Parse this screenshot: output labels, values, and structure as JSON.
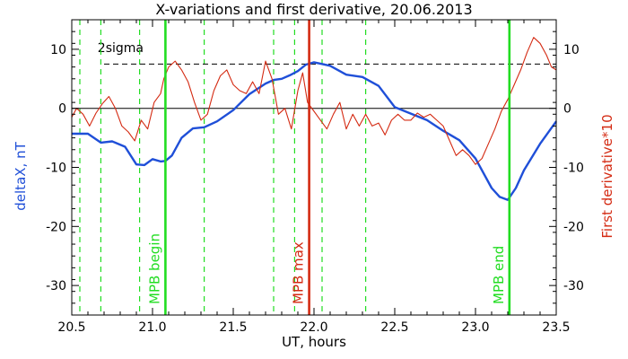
{
  "chart_data": {
    "type": "line",
    "title": "X-variations and first derivative, 20.06.2013",
    "xlabel": "UT, hours",
    "ylabel_left": "deltaX, nT",
    "ylabel_right": "First derivative*10",
    "xlim": [
      20.5,
      23.5
    ],
    "ylim": [
      -35,
      15
    ],
    "x_ticks": [
      20.5,
      21.0,
      21.5,
      22.0,
      22.5,
      23.0,
      23.5
    ],
    "x_tick_labels": [
      "20.5",
      "21.0",
      "21.5",
      "22.0",
      "22.5",
      "23.0",
      "23.5"
    ],
    "y_ticks": [
      10,
      0,
      -10,
      -20,
      -30
    ],
    "y_tick_labels": [
      "10",
      "0",
      "-10",
      "-20",
      "-30"
    ],
    "grid": false,
    "threshold_label": "2sigma",
    "threshold_value": 7.5,
    "zero_line": 0,
    "colors": {
      "deltaX": "#1f4fd8",
      "derivative": "#d42a12",
      "markers": "#22dd22",
      "mpb_max": "#d42a12",
      "text_left": "#1f4fd8",
      "text_right": "#d42a12"
    },
    "series": [
      {
        "name": "deltaX, nT",
        "color": "#1f4fd8",
        "x": [
          20.5,
          20.6,
          20.68,
          20.75,
          20.83,
          20.9,
          20.95,
          21.0,
          21.05,
          21.08,
          21.12,
          21.18,
          21.25,
          21.32,
          21.4,
          21.5,
          21.6,
          21.7,
          21.75,
          21.8,
          21.85,
          21.9,
          21.95,
          22.0,
          22.05,
          22.1,
          22.2,
          22.3,
          22.4,
          22.5,
          22.6,
          22.7,
          22.8,
          22.9,
          23.0,
          23.1,
          23.15,
          23.2,
          23.25,
          23.3,
          23.4,
          23.5
        ],
        "values": [
          -4.3,
          -4.3,
          -5.8,
          -5.6,
          -6.5,
          -9.5,
          -9.6,
          -8.6,
          -9.0,
          -8.9,
          -8.0,
          -5.0,
          -3.4,
          -3.2,
          -2.2,
          -0.3,
          2.4,
          4.2,
          4.8,
          5.0,
          5.6,
          6.3,
          7.4,
          7.8,
          7.5,
          7.2,
          5.7,
          5.3,
          3.8,
          0.2,
          -0.9,
          -2.0,
          -3.8,
          -5.4,
          -8.5,
          -13.5,
          -15.0,
          -15.5,
          -13.5,
          -10.5,
          -6.0,
          -2.2
        ]
      },
      {
        "name": "First derivative*10",
        "color": "#d42a12",
        "x": [
          20.5,
          20.53,
          20.57,
          20.61,
          20.65,
          20.69,
          20.73,
          20.77,
          20.81,
          20.85,
          20.89,
          20.93,
          20.97,
          21.01,
          21.05,
          21.07,
          21.1,
          21.14,
          21.18,
          21.22,
          21.26,
          21.3,
          21.34,
          21.38,
          21.42,
          21.46,
          21.5,
          21.54,
          21.58,
          21.62,
          21.66,
          21.7,
          21.74,
          21.78,
          21.82,
          21.86,
          21.9,
          21.93,
          21.96,
          22.0,
          22.04,
          22.08,
          22.12,
          22.16,
          22.2,
          22.24,
          22.28,
          22.32,
          22.36,
          22.4,
          22.44,
          22.48,
          22.52,
          22.56,
          22.6,
          22.64,
          22.68,
          22.72,
          22.76,
          22.8,
          22.84,
          22.88,
          22.92,
          22.96,
          23.0,
          23.04,
          23.08,
          23.12,
          23.16,
          23.2,
          23.24,
          23.28,
          23.32,
          23.36,
          23.4,
          23.44,
          23.47,
          23.5
        ],
        "values": [
          -1.5,
          0.0,
          -1.0,
          -3.0,
          -0.8,
          0.8,
          2.0,
          0.0,
          -3.0,
          -4.0,
          -5.5,
          -2.0,
          -3.5,
          1.0,
          2.5,
          5.0,
          7.0,
          8.0,
          6.5,
          4.5,
          1.0,
          -2.0,
          -1.0,
          3.0,
          5.5,
          6.5,
          4.0,
          3.0,
          2.5,
          4.5,
          2.5,
          8.0,
          5.0,
          -1.0,
          0.0,
          -3.5,
          3.0,
          6.0,
          1.0,
          -0.5,
          -2.0,
          -3.5,
          -1.0,
          1.0,
          -3.5,
          -1.0,
          -3.0,
          -1.0,
          -3.0,
          -2.5,
          -4.5,
          -2.0,
          -1.0,
          -2.0,
          -2.0,
          -0.8,
          -1.5,
          -1.0,
          -2.0,
          -3.0,
          -5.5,
          -8.0,
          -7.0,
          -8.0,
          -9.5,
          -8.5,
          -6.0,
          -3.5,
          -0.5,
          1.5,
          4.0,
          6.5,
          9.5,
          12.0,
          11.0,
          9.0,
          7.0,
          6.5
        ]
      }
    ],
    "dashed_markers_x": [
      20.55,
      20.68,
      20.92,
      21.32,
      21.75,
      21.88,
      22.05,
      22.32
    ],
    "event_markers": [
      {
        "label": "MPB begin",
        "x": 21.08,
        "color": "#22dd22"
      },
      {
        "label": "MPB max",
        "x": 21.97,
        "color": "#d42a12"
      },
      {
        "label": "MPB end",
        "x": 23.21,
        "color": "#22dd22"
      }
    ]
  }
}
